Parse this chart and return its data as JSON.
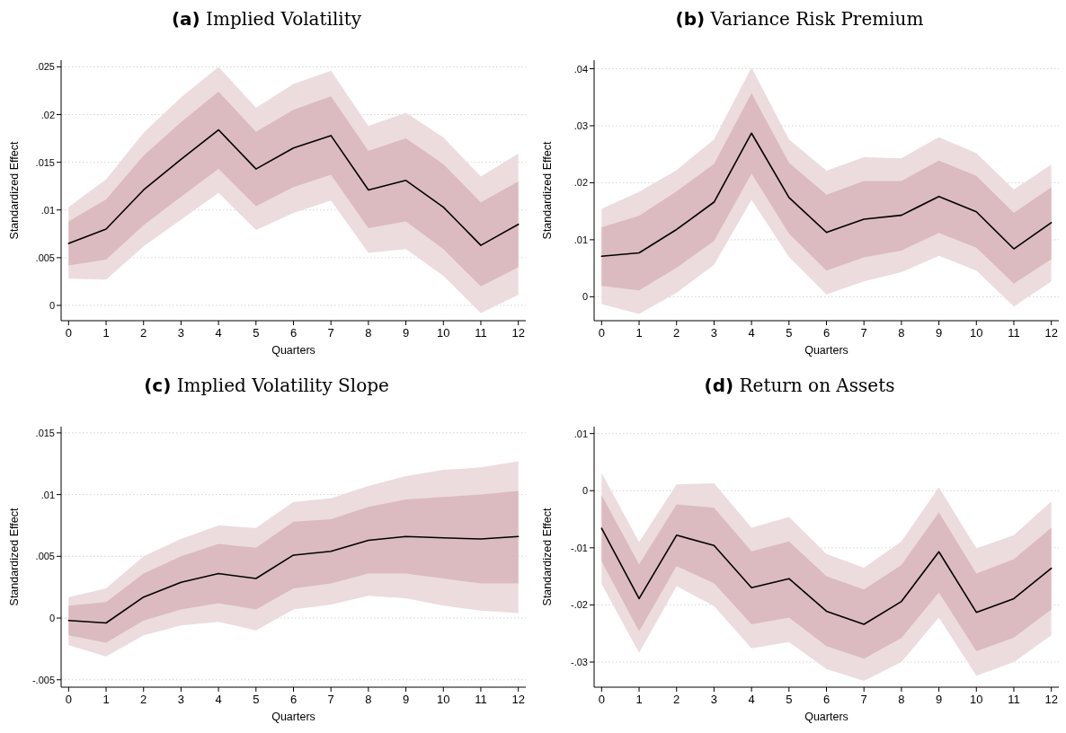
{
  "chart_data": [
    {
      "type": "line",
      "title": "(a) Implied Volatility",
      "xlabel": "Quarters",
      "ylabel": "Standardized Effect",
      "x": [
        0,
        1,
        2,
        3,
        4,
        5,
        6,
        7,
        8,
        9,
        10,
        11,
        12
      ],
      "xlim": [
        -0.2,
        12.2
      ],
      "xticks": [
        0,
        1,
        2,
        3,
        4,
        5,
        6,
        7,
        8,
        9,
        10,
        11,
        12
      ],
      "ylim": [
        -0.0016,
        0.0257
      ],
      "yticks": [
        {
          "value": 0,
          "label": "0"
        },
        {
          "value": 0.005,
          "label": ".005"
        },
        {
          "value": 0.01,
          "label": ".01"
        },
        {
          "value": 0.015,
          "label": ".015"
        },
        {
          "value": 0.02,
          "label": ".02"
        },
        {
          "value": 0.025,
          "label": ".025"
        }
      ],
      "grid": "y",
      "line_style": "solid",
      "marker": "none",
      "series": [
        {
          "color": "#ecdcde",
          "values": [
            null,
            null,
            null,
            null,
            null,
            null,
            null,
            null,
            null,
            null,
            null,
            null,
            null
          ],
          "lower": [
            0.0028,
            0.0027,
            0.0062,
            0.009,
            0.0118,
            0.0079,
            0.0097,
            0.011,
            0.0055,
            0.0059,
            0.0031,
            -0.0008,
            0.0011
          ],
          "upper": [
            0.0103,
            0.0132,
            0.0181,
            0.0218,
            0.025,
            0.0207,
            0.0232,
            0.0246,
            0.0188,
            0.0202,
            0.0176,
            0.0135,
            0.0159
          ]
        },
        {
          "color": "#dbbbbf",
          "values": [
            null,
            null,
            null,
            null,
            null,
            null,
            null,
            null,
            null,
            null,
            null,
            null,
            null
          ],
          "lower": [
            0.0042,
            0.0048,
            0.0084,
            0.0114,
            0.0143,
            0.0104,
            0.0124,
            0.0137,
            0.0081,
            0.0088,
            0.0059,
            0.002,
            0.004
          ],
          "upper": [
            0.0088,
            0.0111,
            0.0157,
            0.0192,
            0.0224,
            0.0182,
            0.0205,
            0.0219,
            0.0162,
            0.0175,
            0.0148,
            0.0108,
            0.013
          ]
        },
        {
          "color": "#000000",
          "values": [
            0.0065,
            0.008,
            0.0121,
            0.0153,
            0.0184,
            0.0143,
            0.0165,
            0.0178,
            0.0121,
            0.0131,
            0.0103,
            0.0063,
            0.0085
          ]
        }
      ]
    },
    {
      "type": "line",
      "title": "(b) Variance Risk Premium",
      "xlabel": "Quarters",
      "ylabel": "Standardized Effect",
      "x": [
        0,
        1,
        2,
        3,
        4,
        5,
        6,
        7,
        8,
        9,
        10,
        11,
        12
      ],
      "xlim": [
        -0.2,
        12.2
      ],
      "xticks": [
        0,
        1,
        2,
        3,
        4,
        5,
        6,
        7,
        8,
        9,
        10,
        11,
        12
      ],
      "ylim": [
        -0.0042,
        0.0415
      ],
      "yticks": [
        {
          "value": 0,
          "label": "0"
        },
        {
          "value": 0.01,
          "label": ".01"
        },
        {
          "value": 0.02,
          "label": ".02"
        },
        {
          "value": 0.03,
          "label": ".03"
        },
        {
          "value": 0.04,
          "label": ".04"
        }
      ],
      "grid": "y",
      "line_style": "solid",
      "marker": "none",
      "series": [
        {
          "color": "#ecdcde",
          "values": [
            null,
            null,
            null,
            null,
            null,
            null,
            null,
            null,
            null,
            null,
            null,
            null,
            null
          ],
          "lower": [
            -0.0013,
            -0.003,
            0.0007,
            0.0056,
            0.017,
            0.007,
            0.0004,
            0.0027,
            0.0043,
            0.0072,
            0.0046,
            -0.0017,
            0.0027
          ],
          "upper": [
            0.0154,
            0.0184,
            0.0222,
            0.0276,
            0.0402,
            0.0276,
            0.0221,
            0.0245,
            0.0243,
            0.028,
            0.0252,
            0.0188,
            0.0232
          ]
        },
        {
          "color": "#dbbbbf",
          "values": [
            null,
            null,
            null,
            null,
            null,
            null,
            null,
            null,
            null,
            null,
            null,
            null,
            null
          ],
          "lower": [
            0.0019,
            0.0011,
            0.0051,
            0.0098,
            0.0216,
            0.0111,
            0.0046,
            0.0069,
            0.0081,
            0.0112,
            0.0086,
            0.0023,
            0.0066
          ],
          "upper": [
            0.0122,
            0.0142,
            0.0185,
            0.0233,
            0.0357,
            0.0235,
            0.0179,
            0.0203,
            0.0203,
            0.0239,
            0.0212,
            0.0147,
            0.0192
          ]
        },
        {
          "color": "#000000",
          "values": [
            0.0071,
            0.0077,
            0.0118,
            0.0166,
            0.0287,
            0.0174,
            0.0113,
            0.0136,
            0.0143,
            0.0176,
            0.0149,
            0.0084,
            0.013
          ]
        }
      ]
    },
    {
      "type": "line",
      "title": "(c) Implied Volatility Slope",
      "xlabel": "Quarters",
      "ylabel": "Standardized Effect",
      "x": [
        0,
        1,
        2,
        3,
        4,
        5,
        6,
        7,
        8,
        9,
        10,
        11,
        12
      ],
      "xlim": [
        -0.2,
        12.2
      ],
      "xticks": [
        0,
        1,
        2,
        3,
        4,
        5,
        6,
        7,
        8,
        9,
        10,
        11,
        12
      ],
      "ylim": [
        -0.0056,
        0.0155
      ],
      "yticks": [
        {
          "value": -0.005,
          "label": "-.005"
        },
        {
          "value": 0,
          "label": "0"
        },
        {
          "value": 0.005,
          "label": ".005"
        },
        {
          "value": 0.01,
          "label": ".01"
        },
        {
          "value": 0.015,
          "label": ".015"
        }
      ],
      "grid": "y",
      "line_style": "solid",
      "marker": "none",
      "series": [
        {
          "color": "#ecdcde",
          "values": [
            null,
            null,
            null,
            null,
            null,
            null,
            null,
            null,
            null,
            null,
            null,
            null,
            null
          ],
          "lower": [
            -0.0022,
            -0.0031,
            -0.0014,
            -0.0006,
            -0.0003,
            -0.001,
            0.0007,
            0.0011,
            0.0018,
            0.0016,
            0.001,
            0.0006,
            0.0004
          ],
          "upper": [
            0.0017,
            0.0024,
            0.005,
            0.0064,
            0.0075,
            0.0073,
            0.0094,
            0.0097,
            0.0107,
            0.0115,
            0.012,
            0.0122,
            0.0127
          ]
        },
        {
          "color": "#dbbbbf",
          "values": [
            null,
            null,
            null,
            null,
            null,
            null,
            null,
            null,
            null,
            null,
            null,
            null,
            null
          ],
          "lower": [
            -0.0014,
            -0.002,
            -0.0002,
            0.0007,
            0.0012,
            0.0007,
            0.0024,
            0.0028,
            0.0036,
            0.0036,
            0.0032,
            0.0028,
            0.0028
          ],
          "upper": [
            0.001,
            0.0013,
            0.0036,
            0.005,
            0.006,
            0.0057,
            0.0078,
            0.008,
            0.009,
            0.0096,
            0.0098,
            0.01,
            0.0103
          ]
        },
        {
          "color": "#000000",
          "values": [
            -0.0002,
            -0.0004,
            0.0017,
            0.0029,
            0.0036,
            0.0032,
            0.0051,
            0.0054,
            0.0063,
            0.0066,
            0.0065,
            0.0064,
            0.0066
          ]
        }
      ]
    },
    {
      "type": "line",
      "title": "(d) Return on Assets",
      "xlabel": "Quarters",
      "ylabel": "Standardized Effect",
      "x": [
        0,
        1,
        2,
        3,
        4,
        5,
        6,
        7,
        8,
        9,
        10,
        11,
        12
      ],
      "xlim": [
        -0.2,
        12.2
      ],
      "xticks": [
        0,
        1,
        2,
        3,
        4,
        5,
        6,
        7,
        8,
        9,
        10,
        11,
        12
      ],
      "ylim": [
        -0.0344,
        0.0112
      ],
      "yticks": [
        {
          "value": -0.03,
          "label": "-.03"
        },
        {
          "value": -0.02,
          "label": "-.02"
        },
        {
          "value": -0.01,
          "label": "-.01"
        },
        {
          "value": 0,
          "label": "0"
        },
        {
          "value": 0.01,
          "label": ".01"
        }
      ],
      "grid": "y",
      "line_style": "solid",
      "marker": "none",
      "series": [
        {
          "color": "#ecdcde",
          "values": [
            null,
            null,
            null,
            null,
            null,
            null,
            null,
            null,
            null,
            null,
            null,
            null,
            null
          ],
          "lower": [
            -0.0163,
            -0.0284,
            -0.0167,
            -0.0202,
            -0.0276,
            -0.0265,
            -0.0312,
            -0.0333,
            -0.03,
            -0.0222,
            -0.0324,
            -0.03,
            -0.0253
          ],
          "upper": [
            0.0031,
            -0.009,
            0.0011,
            0.0013,
            -0.0065,
            -0.0046,
            -0.0111,
            -0.0135,
            -0.0089,
            0.0006,
            -0.0101,
            -0.0078,
            -0.0019
          ]
        },
        {
          "color": "#dbbbbf",
          "values": [
            null,
            null,
            null,
            null,
            null,
            null,
            null,
            null,
            null,
            null,
            null,
            null,
            null
          ],
          "lower": [
            -0.0124,
            -0.0246,
            -0.0132,
            -0.0162,
            -0.0234,
            -0.0222,
            -0.0272,
            -0.0294,
            -0.0258,
            -0.0178,
            -0.0281,
            -0.0257,
            -0.0208
          ],
          "upper": [
            -0.0008,
            -0.0129,
            -0.0024,
            -0.003,
            -0.0106,
            -0.0089,
            -0.015,
            -0.0173,
            -0.013,
            -0.0038,
            -0.0145,
            -0.012,
            -0.0065
          ]
        },
        {
          "color": "#000000",
          "values": [
            -0.0066,
            -0.0189,
            -0.0078,
            -0.0096,
            -0.017,
            -0.0154,
            -0.0211,
            -0.0234,
            -0.0194,
            -0.0107,
            -0.0213,
            -0.0189,
            -0.0136
          ]
        }
      ]
    }
  ]
}
